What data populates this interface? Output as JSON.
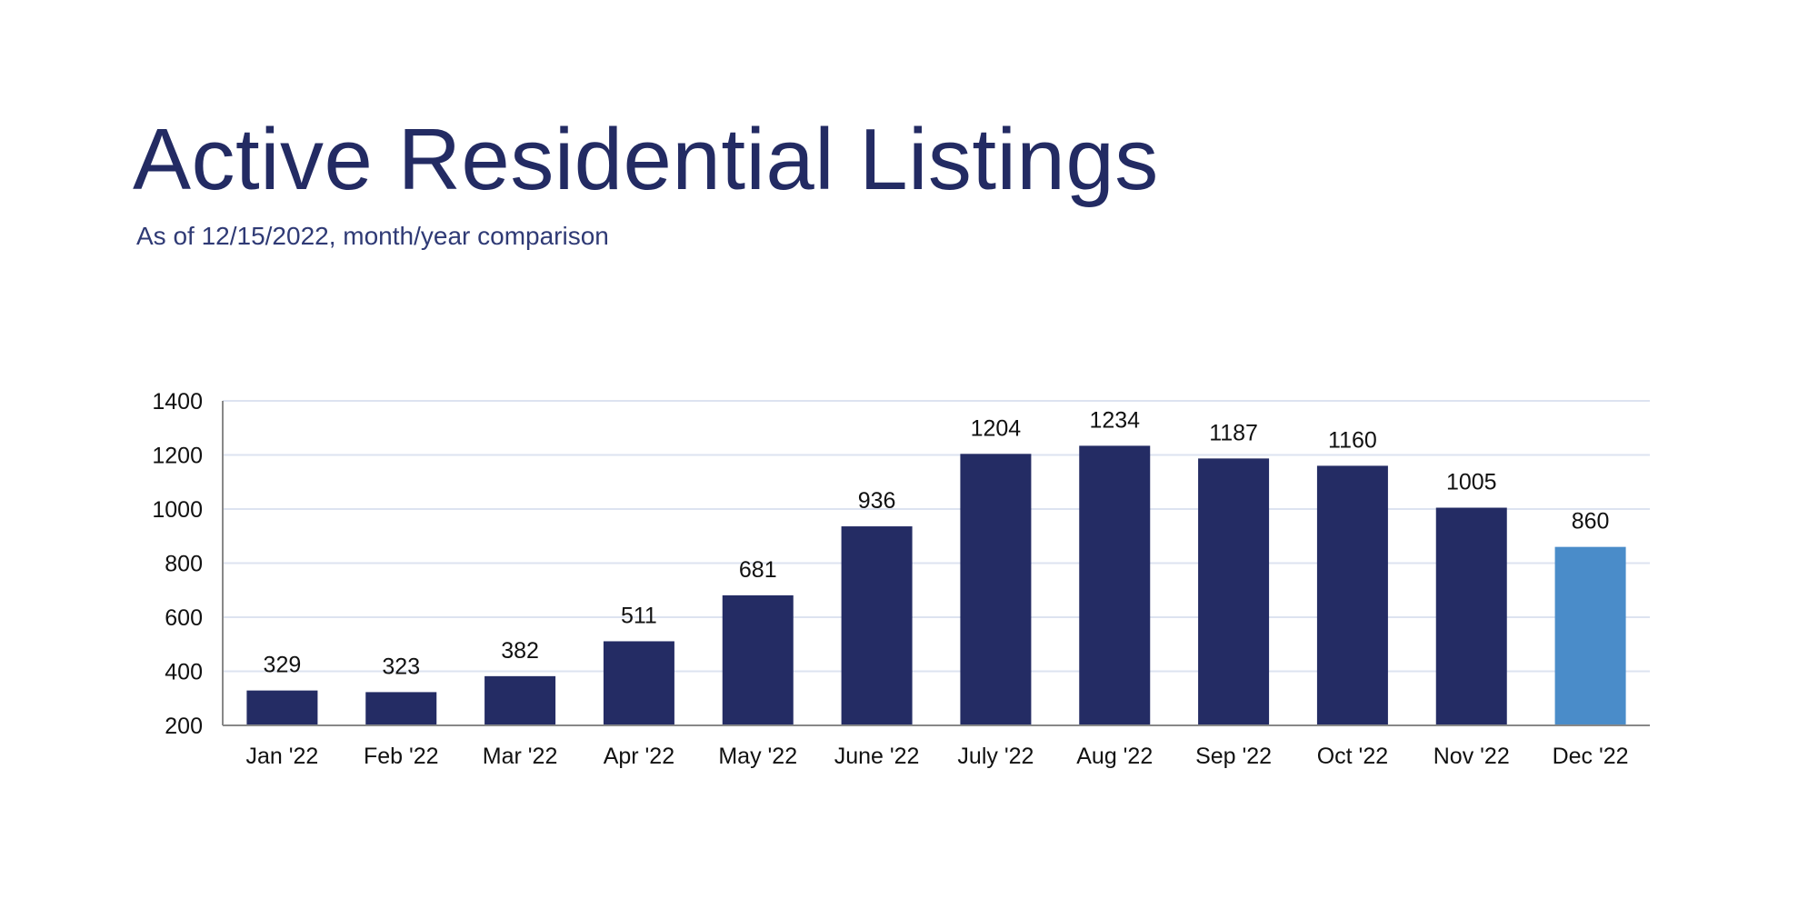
{
  "title": "Active Residential Listings",
  "subtitle": "As of 12/15/2022, month/year comparison",
  "colors": {
    "title": "#232b63",
    "bar": "#242c64",
    "highlight_bar": "#4a8cc9",
    "grid": "#dde3f0",
    "axis": "#888888"
  },
  "chart_data": {
    "type": "bar",
    "title": "",
    "xlabel": "",
    "ylabel": "",
    "categories": [
      "Jan '22",
      "Feb '22",
      "Mar '22",
      "Apr '22",
      "May '22",
      "June '22",
      "July '22",
      "Aug '22",
      "Sep '22",
      "Oct '22",
      "Nov '22",
      "Dec '22"
    ],
    "values": [
      329,
      323,
      382,
      511,
      681,
      936,
      1204,
      1234,
      1187,
      1160,
      1005,
      860
    ],
    "highlight_index": 11,
    "ylim": [
      200,
      1400
    ],
    "yticks": [
      200,
      400,
      600,
      800,
      1000,
      1200,
      1400
    ],
    "grid": true,
    "legend": "none",
    "data_labels": true
  }
}
